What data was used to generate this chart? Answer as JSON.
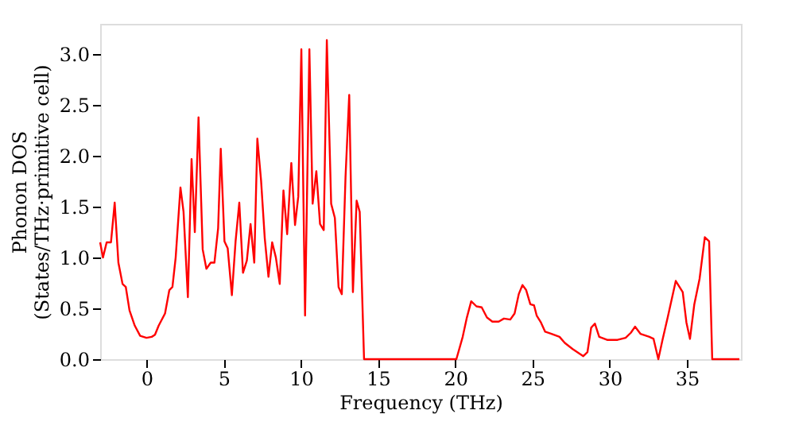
{
  "chart_data": {
    "type": "line",
    "xlabel": "Frequency (THz)",
    "ylabel": "Phonon DOS\n(States/THz·primitive cell)",
    "xlim": [
      -3,
      38.5
    ],
    "ylim": [
      0,
      3.3
    ],
    "xticks": [
      0,
      5,
      10,
      15,
      20,
      25,
      30,
      35
    ],
    "yticks": [
      {
        "value": 0,
        "label": "0.0"
      },
      {
        "value": 0.5,
        "label": "0.5"
      },
      {
        "value": 1,
        "label": "1.0"
      },
      {
        "value": 1.5,
        "label": "1.5"
      },
      {
        "value": 2,
        "label": "2.0"
      },
      {
        "value": 2.5,
        "label": "2.5"
      },
      {
        "value": 3,
        "label": "3.0"
      }
    ],
    "grid": false,
    "legend": false,
    "marker": "none",
    "line_style": "solid",
    "series": [
      {
        "color": "#ff0000",
        "x": [
          -3.0,
          -2.82,
          -2.58,
          -2.3,
          -2.06,
          -1.82,
          -1.55,
          -1.34,
          -1.1,
          -0.76,
          -0.41,
          0,
          0.34,
          0.55,
          0.79,
          1.2,
          1.48,
          1.68,
          1.89,
          2.2,
          2.4,
          2.68,
          2.92,
          3.13,
          3.37,
          3.64,
          3.88,
          4.16,
          4.4,
          4.64,
          4.81,
          5.05,
          5.26,
          5.53,
          5.77,
          6.01,
          6.25,
          6.5,
          6.74,
          6.98,
          7.18,
          7.42,
          7.66,
          7.9,
          8.14,
          8.38,
          8.63,
          8.87,
          9.11,
          9.38,
          9.62,
          9.83,
          10.03,
          10.27,
          10.55,
          10.76,
          11.0,
          11.24,
          11.48,
          11.68,
          11.96,
          12.2,
          12.44,
          12.65,
          12.89,
          13.13,
          13.37,
          13.61,
          13.81,
          14.09,
          20.07,
          20.48,
          20.75,
          21.03,
          21.37,
          21.71,
          22.05,
          22.4,
          22.81,
          23.15,
          23.56,
          23.84,
          24.11,
          24.35,
          24.59,
          24.86,
          25.1,
          25.27,
          25.55,
          25.82,
          26.23,
          26.75,
          27.09,
          27.6,
          28.29,
          28.56,
          28.8,
          29.04,
          29.32,
          29.83,
          30.51,
          31.03,
          31.37,
          31.64,
          31.99,
          32.57,
          32.84,
          33.15,
          33.42,
          33.77,
          34.28,
          34.73,
          34.97,
          35.2,
          35.48,
          35.82,
          36.16,
          36.44,
          36.64,
          38.4
        ],
        "values": [
          1.15,
          1.0,
          1.15,
          1.15,
          1.54,
          0.95,
          0.74,
          0.71,
          0.48,
          0.33,
          0.23,
          0.21,
          0.22,
          0.24,
          0.33,
          0.45,
          0.68,
          0.71,
          1.0,
          1.69,
          1.45,
          0.61,
          1.97,
          1.25,
          2.38,
          1.08,
          0.89,
          0.95,
          0.95,
          1.29,
          2.07,
          1.16,
          1.09,
          0.63,
          1.16,
          1.54,
          0.85,
          0.97,
          1.33,
          0.95,
          2.17,
          1.76,
          1.19,
          0.81,
          1.15,
          1.0,
          0.74,
          1.66,
          1.23,
          1.93,
          1.32,
          1.6,
          3.05,
          0.43,
          3.05,
          1.53,
          1.85,
          1.33,
          1.27,
          3.14,
          1.53,
          1.39,
          0.71,
          0.64,
          1.79,
          2.6,
          0.66,
          1.56,
          1.45,
          0.0,
          0.0,
          0.22,
          0.41,
          0.57,
          0.52,
          0.51,
          0.41,
          0.37,
          0.37,
          0.4,
          0.39,
          0.45,
          0.64,
          0.73,
          0.68,
          0.54,
          0.53,
          0.43,
          0.36,
          0.27,
          0.25,
          0.22,
          0.16,
          0.1,
          0.03,
          0.07,
          0.31,
          0.35,
          0.22,
          0.19,
          0.19,
          0.21,
          0.26,
          0.32,
          0.25,
          0.22,
          0.2,
          0.0,
          0.19,
          0.42,
          0.77,
          0.66,
          0.36,
          0.2,
          0.54,
          0.79,
          1.2,
          1.16,
          0.0,
          0.0
        ]
      }
    ]
  }
}
